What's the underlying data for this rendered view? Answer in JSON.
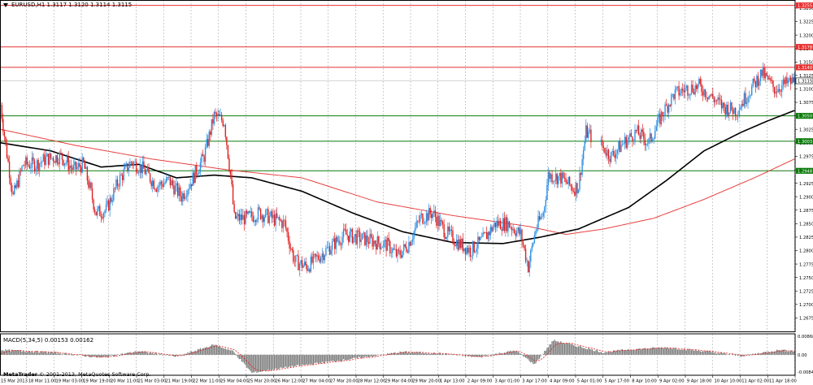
{
  "header": {
    "symbol": "EURUSD,H1",
    "ohlc": "1.3117 1.3120 1.3114 1.3115"
  },
  "macd": {
    "label": "MACD(5,34,5) 0.00153 0.00162",
    "top_tick": "0.00868",
    "mid_tick": "0.00",
    "bottom_tick": "-0.00847"
  },
  "copyright": {
    "brand": "MetaTrader",
    "text": "© 2001-2013, MetaQuotes Software Corp."
  },
  "colors": {
    "bull": "#2f8fe0",
    "bear": "#e02020",
    "ma_fast": "#000000",
    "ma_slow": "#e84040",
    "level_red": "#e83030",
    "level_green": "#0a7a0a",
    "grid": "#a8a8a8",
    "macd_bar": "#808080",
    "macd_signal": "#e02020"
  },
  "chart_data": {
    "type": "candlestick",
    "symbol": "EURUSD",
    "timeframe": "H1",
    "ylim": [
      1.265,
      1.3265
    ],
    "y_ticks": [
      "1.3250",
      "1.3225",
      "1.3200",
      "1.3175",
      "1.3150",
      "1.3125",
      "1.3100",
      "1.3075",
      "1.3050",
      "1.3025",
      "1.3000",
      "1.2975",
      "1.2950",
      "1.2925",
      "1.2900",
      "1.2875",
      "1.2850",
      "1.2825",
      "1.2800",
      "1.2775",
      "1.2750",
      "1.2725",
      "1.2700",
      "1.2675"
    ],
    "x_labels": [
      "15 Mar 2013",
      "18 Mar 11:00",
      "19 Mar 03:00",
      "19 Mar 19:00",
      "20 Mar 11:00",
      "21 Mar 03:00",
      "21 Mar 19:00",
      "22 Mar 11:00",
      "25 Mar 04:00",
      "25 Mar 20:00",
      "26 Mar 12:00",
      "27 Mar 04:00",
      "27 Mar 20:00",
      "28 Mar 12:00",
      "29 Mar 04:00",
      "29 Mar 20:00",
      "1 Apr 13:00",
      "2 Apr 09:00",
      "3 Apr 01:00",
      "3 Apr 17:00",
      "4 Apr 09:00",
      "5 Apr 01:00",
      "5 Apr 17:00",
      "8 Apr 10:00",
      "9 Apr 02:00",
      "9 Apr 18:00",
      "10 Apr 10:00",
      "11 Apr 02:00",
      "11 Apr 18:00"
    ],
    "levels": [
      {
        "price": 1.3255,
        "label": "1.3255",
        "color": "red"
      },
      {
        "price": 1.3178,
        "label": "1.3178",
        "color": "red"
      },
      {
        "price": 1.314,
        "label": "1.3140",
        "color": "red"
      },
      {
        "price": 1.305,
        "label": "1.3050",
        "color": "green"
      },
      {
        "price": 1.3003,
        "label": "1.3003",
        "color": "green"
      },
      {
        "price": 1.2948,
        "label": "1.2948",
        "color": "green"
      }
    ],
    "current_price": {
      "price": 1.3115,
      "label": "1.3115"
    },
    "ohlc_keypoints": [
      [
        0,
        1.307
      ],
      [
        4,
        1.2995
      ],
      [
        10,
        1.29
      ],
      [
        18,
        1.296
      ],
      [
        28,
        1.296
      ],
      [
        36,
        1.297
      ],
      [
        48,
        1.2975
      ],
      [
        58,
        1.295
      ],
      [
        66,
        1.296
      ],
      [
        76,
        1.287
      ],
      [
        84,
        1.2875
      ],
      [
        94,
        1.293
      ],
      [
        104,
        1.2965
      ],
      [
        114,
        1.295
      ],
      [
        124,
        1.292
      ],
      [
        134,
        1.293
      ],
      [
        144,
        1.29
      ],
      [
        152,
        1.293
      ],
      [
        162,
        1.2975
      ],
      [
        170,
        1.305
      ],
      [
        178,
        1.304
      ],
      [
        183,
        1.294
      ],
      [
        186,
        1.286
      ],
      [
        196,
        1.286
      ],
      [
        206,
        1.287
      ],
      [
        216,
        1.286
      ],
      [
        226,
        1.285
      ],
      [
        234,
        1.278
      ],
      [
        244,
        1.277
      ],
      [
        254,
        1.279
      ],
      [
        264,
        1.281
      ],
      [
        274,
        1.283
      ],
      [
        282,
        1.2825
      ],
      [
        292,
        1.282
      ],
      [
        300,
        1.2815
      ],
      [
        308,
        1.281
      ],
      [
        316,
        1.279
      ],
      [
        324,
        1.281
      ],
      [
        334,
        1.286
      ],
      [
        344,
        1.287
      ],
      [
        354,
        1.2835
      ],
      [
        364,
        1.2815
      ],
      [
        374,
        1.28
      ],
      [
        384,
        1.282
      ],
      [
        394,
        1.285
      ],
      [
        404,
        1.285
      ],
      [
        414,
        1.283
      ],
      [
        420,
        1.277
      ],
      [
        426,
        1.284
      ],
      [
        432,
        1.287
      ],
      [
        436,
        1.294
      ],
      [
        446,
        1.2935
      ],
      [
        456,
        1.2915
      ],
      [
        460,
        1.292
      ],
      [
        466,
        1.302
      ],
      [
        476,
        1.3
      ],
      [
        486,
        1.2975
      ],
      [
        496,
        1.3
      ],
      [
        506,
        1.302
      ],
      [
        516,
        1.3
      ],
      [
        526,
        1.305
      ],
      [
        536,
        1.309
      ],
      [
        546,
        1.31
      ],
      [
        556,
        1.3105
      ],
      [
        566,
        1.3085
      ],
      [
        576,
        1.3065
      ],
      [
        586,
        1.306
      ],
      [
        596,
        1.3095
      ],
      [
        606,
        1.313
      ],
      [
        616,
        1.31
      ],
      [
        626,
        1.311
      ],
      [
        632,
        1.3115
      ]
    ],
    "ma_fast": {
      "period": "unknown",
      "points": [
        [
          0,
          1.3
        ],
        [
          40,
          1.2985
        ],
        [
          80,
          1.2955
        ],
        [
          110,
          1.296
        ],
        [
          140,
          1.2935
        ],
        [
          170,
          1.294
        ],
        [
          200,
          1.2935
        ],
        [
          240,
          1.291
        ],
        [
          280,
          1.287
        ],
        [
          320,
          1.2835
        ],
        [
          360,
          1.2815
        ],
        [
          400,
          1.2813
        ],
        [
          430,
          1.2825
        ],
        [
          460,
          1.284
        ],
        [
          500,
          1.288
        ],
        [
          530,
          1.293
        ],
        [
          560,
          1.2985
        ],
        [
          590,
          1.302
        ],
        [
          610,
          1.304
        ],
        [
          632,
          1.306
        ]
      ]
    },
    "ma_slow": {
      "period": "unknown",
      "points": [
        [
          0,
          1.3025
        ],
        [
          60,
          1.2995
        ],
        [
          120,
          1.297
        ],
        [
          180,
          1.295
        ],
        [
          240,
          1.2935
        ],
        [
          300,
          1.289
        ],
        [
          360,
          1.2865
        ],
        [
          420,
          1.2845
        ],
        [
          450,
          1.283
        ],
        [
          480,
          1.284
        ],
        [
          520,
          1.286
        ],
        [
          560,
          1.2895
        ],
        [
          600,
          1.2935
        ],
        [
          632,
          1.297
        ]
      ]
    },
    "macd_ylim": [
      -0.00847,
      0.00868
    ],
    "macd_keypoints": [
      [
        0,
        0.002
      ],
      [
        40,
        0.001
      ],
      [
        80,
        -0.0012
      ],
      [
        110,
        0.0015
      ],
      [
        140,
        -0.0008
      ],
      [
        170,
        0.0042
      ],
      [
        185,
        0.0015
      ],
      [
        200,
        -0.0075
      ],
      [
        230,
        -0.005
      ],
      [
        260,
        -0.003
      ],
      [
        290,
        -0.001
      ],
      [
        320,
        0.0012
      ],
      [
        350,
        0.0005
      ],
      [
        380,
        -0.001
      ],
      [
        410,
        0.0018
      ],
      [
        425,
        -0.004
      ],
      [
        440,
        0.006
      ],
      [
        460,
        0.0035
      ],
      [
        480,
        0.001
      ],
      [
        500,
        0.0022
      ],
      [
        530,
        0.003
      ],
      [
        560,
        0.0015
      ],
      [
        590,
        -0.0005
      ],
      [
        620,
        0.002
      ],
      [
        632,
        0.0015
      ]
    ]
  }
}
